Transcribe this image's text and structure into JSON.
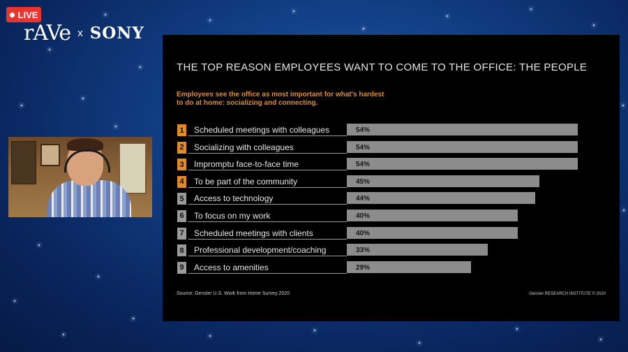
{
  "live": {
    "label": "LIVE"
  },
  "brand": {
    "left": "rAVe",
    "separator": "x",
    "right": "SONY"
  },
  "slide": {
    "title": "THE TOP REASON EMPLOYEES WANT TO COME TO THE OFFICE: THE PEOPLE",
    "subtitle": "Employees see the office as most important for what's hardest to do at home: socializing and connecting.",
    "source": "Source: Gensler U.S. Work from Home Survey 2020",
    "credit": "Gensler RESEARCH INSTITUTE © 2020"
  },
  "colors": {
    "accent_orange": "#e08a2c",
    "muted_grey": "#9a9a9a",
    "bar_grey": "#8c8c8c",
    "live_red": "#e8362f"
  },
  "chart_data": {
    "type": "bar",
    "categories": [
      "Scheduled meetings with colleagues",
      "Socializing with colleagues",
      "Impromptu face-to-face time",
      "To be part of the community",
      "Access to technology",
      "To focus on my work",
      "Scheduled meetings with clients",
      "Professional development/coaching",
      "Access to amenities"
    ],
    "ranks": [
      "1",
      "2",
      "3",
      "4",
      "5",
      "6",
      "7",
      "8",
      "9"
    ],
    "values": [
      54,
      54,
      54,
      45,
      44,
      40,
      40,
      33,
      29
    ],
    "value_labels": [
      "54%",
      "54%",
      "54%",
      "45%",
      "44%",
      "40%",
      "40%",
      "33%",
      "29%"
    ],
    "highlighted": [
      true,
      true,
      true,
      true,
      false,
      false,
      false,
      false,
      false
    ],
    "xlim": [
      0,
      54
    ]
  }
}
